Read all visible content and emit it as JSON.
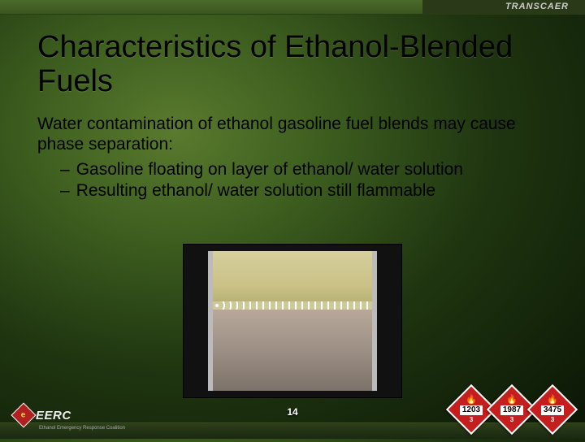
{
  "header": {
    "brand_right": "TRANSCAER"
  },
  "slide": {
    "title": "Characteristics of Ethanol-Blended Fuels",
    "lead": "Water contamination of ethanol gasoline fuel blends may cause phase separation:",
    "bullets": [
      "Gasoline floating on layer of ethanol/ water solution",
      "Resulting ethanol/ water solution still flammable"
    ],
    "number": "14"
  },
  "footer": {
    "left_logo_text": "EERC",
    "left_logo_mark": "e",
    "left_logo_sub": "Ethanol Emergency Response Coalition",
    "placards": [
      {
        "un": "1203",
        "class": "3"
      },
      {
        "un": "1987",
        "class": "3"
      },
      {
        "un": "3475",
        "class": "3"
      }
    ]
  },
  "colors": {
    "placard_bg": "#c41e1e",
    "placard_border": "#ffffff",
    "background_inner": "#5a7a2e",
    "background_outer": "#0a1505"
  }
}
